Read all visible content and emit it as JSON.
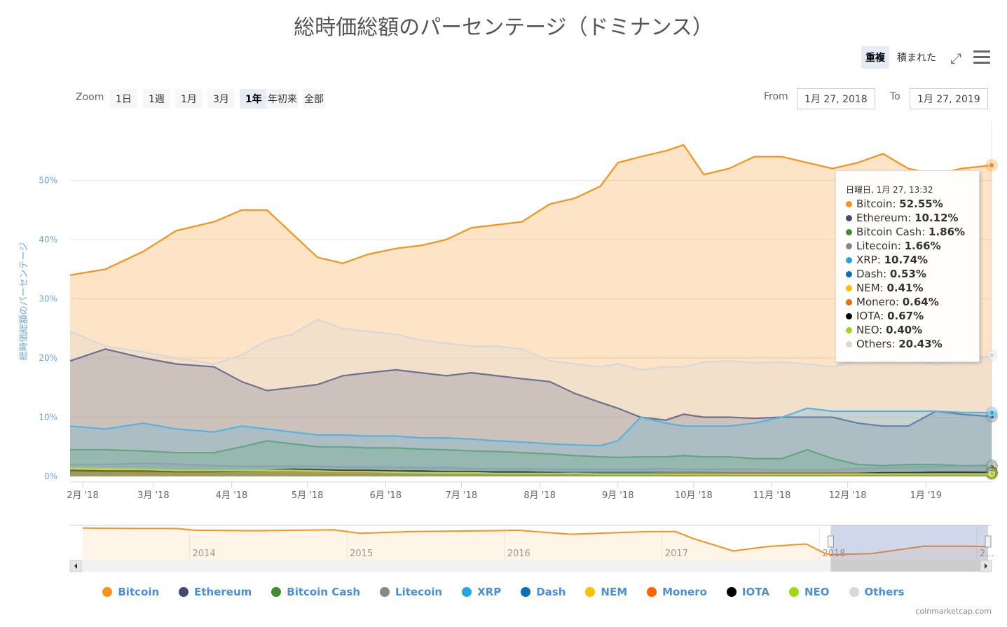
{
  "title": "総時価総額のパーセンテージ（ドミナンス）",
  "mode_buttons": {
    "overlap": "重複",
    "stacked": "積まれた"
  },
  "icons": {
    "fullscreen": "fullscreen-icon",
    "menu": "hamburger-menu-icon"
  },
  "zoom": {
    "label": "Zoom",
    "buttons": [
      "1日",
      "1週",
      "1月",
      "3月",
      "1年",
      "年初来",
      "全部"
    ],
    "selected": "1年"
  },
  "range": {
    "from_label": "From",
    "from": "1月 27, 2018",
    "to_label": "To",
    "to": "1月 27, 2019"
  },
  "tooltip": {
    "header": "日曜日, 1月 27, 13:32",
    "rows": [
      {
        "name": "Bitcoin",
        "value": "52.55%"
      },
      {
        "name": "Ethereum",
        "value": "10.12%"
      },
      {
        "name": "Bitcoin Cash",
        "value": "1.86%"
      },
      {
        "name": "Litecoin",
        "value": "1.66%"
      },
      {
        "name": "XRP",
        "value": "10.74%"
      },
      {
        "name": "Dash",
        "value": "0.53%"
      },
      {
        "name": "NEM",
        "value": "0.41%"
      },
      {
        "name": "Monero",
        "value": "0.64%"
      },
      {
        "name": "IOTA",
        "value": "0.67%"
      },
      {
        "name": "NEO",
        "value": "0.40%"
      },
      {
        "name": "Others",
        "value": "20.43%"
      }
    ]
  },
  "credit": "coinmarketcap.com",
  "chart_data": {
    "type": "area",
    "title": "総時価総額のパーセンテージ（ドミナンス）",
    "ylabel": "総時価総額のパーセンテージ",
    "ylim": [
      0,
      60
    ],
    "yticks": [
      0,
      10,
      20,
      30,
      40,
      50
    ],
    "ytick_labels": [
      "0%",
      "10%",
      "20%",
      "30%",
      "40%",
      "50%"
    ],
    "xrange": [
      "2018-01-27",
      "2019-01-27"
    ],
    "xticks": [
      {
        "date": "2018-02-01",
        "label": "2月 '18"
      },
      {
        "date": "2018-03-01",
        "label": "3月 '18"
      },
      {
        "date": "2018-04-01",
        "label": "4月 '18"
      },
      {
        "date": "2018-05-01",
        "label": "5月 '18"
      },
      {
        "date": "2018-06-01",
        "label": "6月 '18"
      },
      {
        "date": "2018-07-01",
        "label": "7月 '18"
      },
      {
        "date": "2018-08-01",
        "label": "8月 '18"
      },
      {
        "date": "2018-09-01",
        "label": "9月 '18"
      },
      {
        "date": "2018-10-01",
        "label": "10月 '18"
      },
      {
        "date": "2018-11-01",
        "label": "11月 '18"
      },
      {
        "date": "2018-12-01",
        "label": "12月 '18"
      },
      {
        "date": "2019-01-01",
        "label": "1月 '19"
      }
    ],
    "grid": true,
    "legend_position": "bottom",
    "x": [
      "2018-01-27",
      "2018-02-10",
      "2018-02-25",
      "2018-03-10",
      "2018-03-25",
      "2018-04-05",
      "2018-04-15",
      "2018-04-25",
      "2018-05-05",
      "2018-05-15",
      "2018-05-25",
      "2018-06-05",
      "2018-06-15",
      "2018-06-25",
      "2018-07-05",
      "2018-07-15",
      "2018-07-25",
      "2018-08-05",
      "2018-08-15",
      "2018-08-25",
      "2018-09-01",
      "2018-09-10",
      "2018-09-20",
      "2018-09-27",
      "2018-10-05",
      "2018-10-15",
      "2018-10-25",
      "2018-11-05",
      "2018-11-15",
      "2018-11-25",
      "2018-12-05",
      "2018-12-15",
      "2018-12-25",
      "2019-01-05",
      "2019-01-15",
      "2019-01-27"
    ],
    "series": [
      {
        "name": "Bitcoin",
        "color": "#f7931a",
        "values": [
          34,
          35,
          38,
          41.5,
          43,
          45,
          45,
          41,
          37,
          36,
          37.5,
          38.5,
          39,
          40,
          42,
          42.5,
          43,
          46,
          47,
          49,
          53,
          54,
          55,
          56,
          51,
          52,
          54,
          54,
          53,
          52,
          53,
          54.5,
          52,
          51,
          52,
          52.55
        ]
      },
      {
        "name": "Ethereum",
        "color": "#454a75",
        "values": [
          19.5,
          21.5,
          20,
          19,
          18.5,
          16,
          14.5,
          15,
          15.5,
          17,
          17.5,
          18,
          17.5,
          17,
          17.5,
          17,
          16.5,
          16,
          14,
          12.5,
          11.5,
          10,
          9.5,
          10.5,
          10,
          10,
          9.8,
          10,
          10,
          10,
          9,
          8.5,
          8.5,
          11,
          10.5,
          10.12
        ]
      },
      {
        "name": "Bitcoin Cash",
        "color": "#3e8e2e",
        "values": [
          4.5,
          4.5,
          4.3,
          4,
          4,
          5,
          6,
          5.5,
          5,
          5,
          4.8,
          4.8,
          4.6,
          4.5,
          4.3,
          4.2,
          4,
          3.8,
          3.5,
          3.3,
          3.2,
          3.3,
          3.3,
          3.5,
          3.3,
          3.3,
          3,
          3,
          4.5,
          3,
          2,
          1.8,
          2,
          2,
          1.8,
          1.86
        ]
      },
      {
        "name": "Litecoin",
        "color": "#888888",
        "values": [
          2,
          2,
          2.2,
          2.1,
          1.8,
          1.7,
          1.7,
          1.7,
          1.7,
          1.6,
          1.6,
          1.5,
          1.5,
          1.5,
          1.3,
          1.3,
          1.3,
          1.2,
          1.2,
          1.2,
          1.2,
          1.2,
          1.3,
          1.2,
          1.2,
          1.2,
          1.2,
          1.1,
          1.1,
          1.1,
          1.3,
          1.4,
          1.5,
          1.6,
          1.7,
          1.66
        ]
      },
      {
        "name": "XRP",
        "color": "#23a7e0",
        "values": [
          8.5,
          8,
          9,
          8,
          7.5,
          8.5,
          8,
          7.5,
          7,
          7,
          6.8,
          6.8,
          6.5,
          6.5,
          6.3,
          6,
          5.8,
          5.5,
          5.3,
          5.2,
          6,
          10,
          9,
          8.5,
          8.5,
          8.5,
          9,
          10,
          11.5,
          11,
          11,
          11,
          11,
          11,
          10.8,
          10.74
        ]
      },
      {
        "name": "Dash",
        "color": "#0a71b8",
        "values": [
          1.1,
          1.1,
          1,
          1,
          0.9,
          0.9,
          0.9,
          0.9,
          0.9,
          0.9,
          0.9,
          0.8,
          0.8,
          0.8,
          0.8,
          0.8,
          0.8,
          0.7,
          0.7,
          0.7,
          0.7,
          0.7,
          0.7,
          0.7,
          0.7,
          0.6,
          0.6,
          0.6,
          0.6,
          0.6,
          0.5,
          0.5,
          0.5,
          0.5,
          0.5,
          0.53
        ]
      },
      {
        "name": "NEM",
        "color": "#fcc000",
        "values": [
          1.3,
          1.2,
          1.1,
          1,
          0.9,
          0.8,
          0.8,
          0.7,
          0.7,
          0.6,
          0.6,
          0.6,
          0.6,
          0.5,
          0.5,
          0.5,
          0.5,
          0.5,
          0.5,
          0.4,
          0.4,
          0.4,
          0.4,
          0.4,
          0.4,
          0.4,
          0.4,
          0.4,
          0.4,
          0.4,
          0.4,
          0.4,
          0.4,
          0.4,
          0.4,
          0.41
        ]
      },
      {
        "name": "Monero",
        "color": "#ff6600",
        "values": [
          0.8,
          0.8,
          0.7,
          0.7,
          0.7,
          0.8,
          0.8,
          0.8,
          0.8,
          0.7,
          0.7,
          0.7,
          0.7,
          0.6,
          0.6,
          0.6,
          0.6,
          0.5,
          0.5,
          0.5,
          0.5,
          0.5,
          0.6,
          0.6,
          0.6,
          0.6,
          0.6,
          0.6,
          0.6,
          0.6,
          0.6,
          0.6,
          0.6,
          0.6,
          0.6,
          0.64
        ]
      },
      {
        "name": "IOTA",
        "color": "#000000",
        "values": [
          1,
          0.9,
          0.9,
          0.8,
          0.8,
          0.9,
          1,
          1.2,
          1.1,
          1,
          1,
          0.9,
          0.9,
          0.8,
          0.8,
          0.7,
          0.7,
          0.6,
          0.5,
          0.5,
          0.5,
          0.5,
          0.5,
          0.5,
          0.5,
          0.5,
          0.5,
          0.5,
          0.5,
          0.5,
          0.5,
          0.6,
          0.6,
          0.7,
          0.7,
          0.67
        ]
      },
      {
        "name": "NEO",
        "color": "#a1d816",
        "values": [
          1.4,
          1.3,
          1.2,
          1,
          1,
          1,
          1,
          1,
          0.9,
          0.8,
          0.8,
          0.7,
          0.6,
          0.6,
          0.6,
          0.5,
          0.5,
          0.5,
          0.5,
          0.4,
          0.4,
          0.4,
          0.4,
          0.4,
          0.4,
          0.4,
          0.4,
          0.4,
          0.4,
          0.4,
          0.4,
          0.4,
          0.4,
          0.4,
          0.4,
          0.4
        ]
      },
      {
        "name": "Others",
        "color": "#d8d8d8",
        "values": [
          24.5,
          22,
          21,
          20,
          19,
          20.5,
          23,
          24,
          26.5,
          25,
          24.5,
          24,
          23,
          22.5,
          22,
          22,
          21.5,
          19.5,
          19,
          18.5,
          19,
          18,
          18.5,
          18.5,
          19.3,
          19.5,
          19.2,
          19.3,
          19,
          18.5,
          19.5,
          20,
          19.5,
          19,
          19.5,
          20.43
        ]
      }
    ],
    "navigator": {
      "xrange": [
        "2013-04-28",
        "2019-01-27"
      ],
      "ylim": [
        0,
        100
      ],
      "year_labels": [
        {
          "date": "2014-01-01",
          "label": "2014"
        },
        {
          "date": "2015-01-01",
          "label": "2015"
        },
        {
          "date": "2016-01-01",
          "label": "2016"
        },
        {
          "date": "2017-01-01",
          "label": "2017"
        },
        {
          "date": "2018-01-01",
          "label": "2018"
        },
        {
          "date": "2019-01-01",
          "label": "2..."
        }
      ],
      "selected_range": [
        "2018-01-27",
        "2019-01-27"
      ],
      "series_name": "Bitcoin",
      "x": [
        "2013-04-28",
        "2013-09-01",
        "2013-12-01",
        "2014-01-15",
        "2014-06-01",
        "2014-12-01",
        "2015-02-01",
        "2015-06-01",
        "2015-12-01",
        "2016-02-01",
        "2016-06-01",
        "2016-09-01",
        "2016-12-01",
        "2017-02-01",
        "2017-03-15",
        "2017-06-15",
        "2017-09-01",
        "2017-12-01",
        "2018-01-15",
        "2018-01-27",
        "2018-05-01",
        "2018-09-01",
        "2018-12-01",
        "2019-01-27"
      ],
      "values": [
        94,
        93,
        93,
        89,
        88,
        90,
        82,
        86,
        88,
        89,
        80,
        83,
        86,
        86,
        70,
        42,
        52,
        58,
        36,
        34,
        36,
        53,
        53,
        52
      ]
    }
  }
}
